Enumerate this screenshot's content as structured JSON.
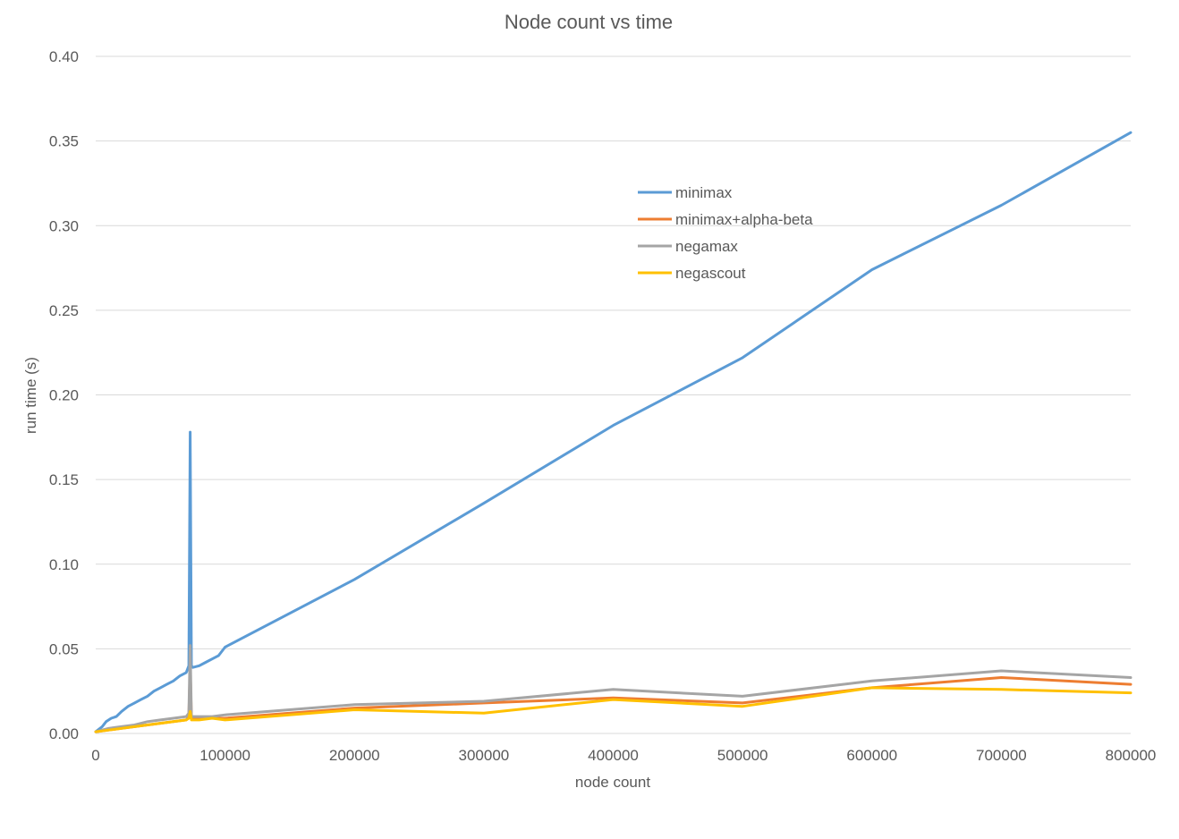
{
  "chart_data": {
    "type": "line",
    "title": "Node count vs time",
    "xlabel": "node count",
    "ylabel": "run time (s)",
    "xlim": [
      0,
      800000
    ],
    "ylim": [
      0,
      0.4
    ],
    "x_ticks": [
      "0",
      "100000",
      "200000",
      "300000",
      "400000",
      "500000",
      "600000",
      "700000",
      "800000"
    ],
    "y_ticks": [
      "0.00",
      "0.05",
      "0.10",
      "0.15",
      "0.20",
      "0.25",
      "0.30",
      "0.35",
      "0.40"
    ],
    "grid": "horizontal",
    "legend_position": "upper-middle",
    "series": [
      {
        "name": "minimax",
        "color": "#5B9BD5",
        "x": [
          0,
          5000,
          8000,
          12000,
          16000,
          20000,
          25000,
          30000,
          35000,
          40000,
          45000,
          50000,
          55000,
          60000,
          65000,
          70000,
          72000,
          73000,
          74000,
          75000,
          80000,
          85000,
          90000,
          95000,
          100000,
          200000,
          300000,
          400000,
          500000,
          600000,
          700000,
          800000
        ],
        "y": [
          0.001,
          0.004,
          0.007,
          0.009,
          0.01,
          0.013,
          0.016,
          0.018,
          0.02,
          0.022,
          0.025,
          0.027,
          0.029,
          0.031,
          0.034,
          0.036,
          0.04,
          0.178,
          0.04,
          0.039,
          0.04,
          0.042,
          0.044,
          0.046,
          0.051,
          0.091,
          0.136,
          0.182,
          0.222,
          0.274,
          0.312,
          0.355
        ]
      },
      {
        "name": "minimax+alpha-beta",
        "color": "#ED7D31",
        "x": [
          0,
          10000,
          20000,
          30000,
          40000,
          50000,
          60000,
          70000,
          72000,
          73000,
          74000,
          80000,
          90000,
          100000,
          200000,
          300000,
          400000,
          500000,
          600000,
          700000,
          800000
        ],
        "y": [
          0.001,
          0.002,
          0.003,
          0.004,
          0.005,
          0.006,
          0.007,
          0.008,
          0.01,
          0.04,
          0.009,
          0.009,
          0.009,
          0.009,
          0.015,
          0.018,
          0.021,
          0.018,
          0.027,
          0.033,
          0.029
        ]
      },
      {
        "name": "negamax",
        "color": "#A5A5A5",
        "x": [
          0,
          10000,
          20000,
          30000,
          40000,
          50000,
          60000,
          70000,
          72000,
          73000,
          74000,
          80000,
          90000,
          100000,
          200000,
          300000,
          400000,
          500000,
          600000,
          700000,
          800000
        ],
        "y": [
          0.001,
          0.003,
          0.004,
          0.005,
          0.007,
          0.008,
          0.009,
          0.01,
          0.012,
          0.052,
          0.01,
          0.01,
          0.01,
          0.011,
          0.017,
          0.019,
          0.026,
          0.022,
          0.031,
          0.037,
          0.033
        ]
      },
      {
        "name": "negascout",
        "color": "#FFC000",
        "x": [
          0,
          10000,
          20000,
          30000,
          40000,
          50000,
          60000,
          70000,
          72000,
          73000,
          74000,
          80000,
          90000,
          100000,
          200000,
          300000,
          400000,
          500000,
          600000,
          700000,
          800000
        ],
        "y": [
          0.001,
          0.002,
          0.003,
          0.004,
          0.005,
          0.006,
          0.007,
          0.008,
          0.009,
          0.013,
          0.008,
          0.008,
          0.009,
          0.008,
          0.014,
          0.012,
          0.02,
          0.016,
          0.027,
          0.026,
          0.024
        ]
      }
    ]
  }
}
